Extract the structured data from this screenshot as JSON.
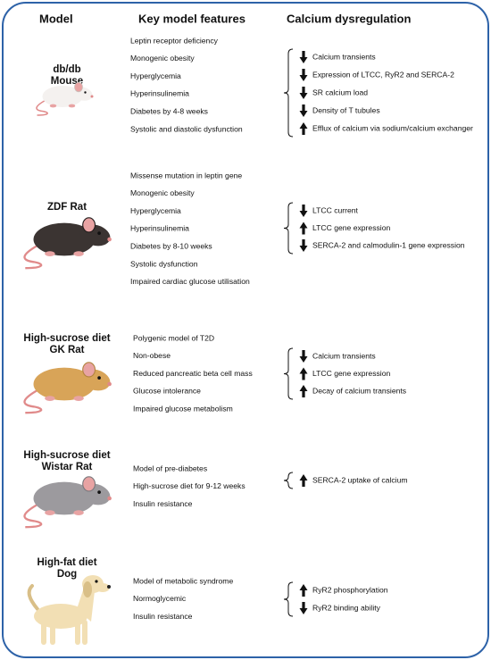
{
  "header": {
    "model": "Model",
    "features": "Key model features",
    "calcium": "Calcium dysregulation"
  },
  "models": [
    {
      "name": [
        "db/db",
        "Mouse"
      ],
      "features": [
        "Leptin receptor deficiency",
        "Monogenic obesity",
        "Hyperglycemia",
        "Hyperinsulinemia",
        "Diabetes by 4-8 weeks",
        "Systolic and diastolic dysfunction"
      ],
      "calcium": [
        {
          "direction": "down",
          "text": "Calcium transients"
        },
        {
          "direction": "down",
          "text": "Expression of LTCC, RyR2 and SERCA-2"
        },
        {
          "direction": "down",
          "text": "SR calcium load"
        },
        {
          "direction": "down",
          "text": "Density of T tubules"
        },
        {
          "direction": "up",
          "text": "Efflux of calcium via sodium/calcium exchanger"
        }
      ]
    },
    {
      "name": [
        "ZDF Rat"
      ],
      "features": [
        "Missense mutation in leptin gene",
        "Monogenic obesity",
        "Hyperglycemia",
        "Hyperinsulinemia",
        "Diabetes by 8-10 weeks",
        "Systolic dysfunction",
        "Impaired cardiac glucose utilisation"
      ],
      "calcium": [
        {
          "direction": "down",
          "text": "LTCC current"
        },
        {
          "direction": "up",
          "text": "LTCC gene expression"
        },
        {
          "direction": "down",
          "text": "SERCA-2 and calmodulin-1 gene expression"
        }
      ]
    },
    {
      "name": [
        "High-sucrose diet",
        "GK Rat"
      ],
      "features": [
        "Polygenic model of T2D",
        "Non-obese",
        "Reduced pancreatic beta cell mass",
        "Glucose intolerance",
        "Impaired glucose metabolism"
      ],
      "calcium": [
        {
          "direction": "down",
          "text": "Calcium transients"
        },
        {
          "direction": "up",
          "text": "LTCC gene expression"
        },
        {
          "direction": "up",
          "text": "Decay of calcium transients"
        }
      ]
    },
    {
      "name": [
        "High-sucrose diet",
        "Wistar Rat"
      ],
      "features": [
        "Model of pre-diabetes",
        "High-sucrose diet for 9-12 weeks",
        "Insulin resistance"
      ],
      "calcium": [
        {
          "direction": "up",
          "text": "SERCA-2 uptake of calcium"
        }
      ]
    },
    {
      "name": [
        "High-fat diet",
        "Dog"
      ],
      "features": [
        "Model of metabolic syndrome",
        "Normoglycemic",
        "Insulin resistance"
      ],
      "calcium": [
        {
          "direction": "up",
          "text": "RyR2 phosphorylation"
        },
        {
          "direction": "down",
          "text": "RyR2 binding ability"
        }
      ]
    }
  ]
}
